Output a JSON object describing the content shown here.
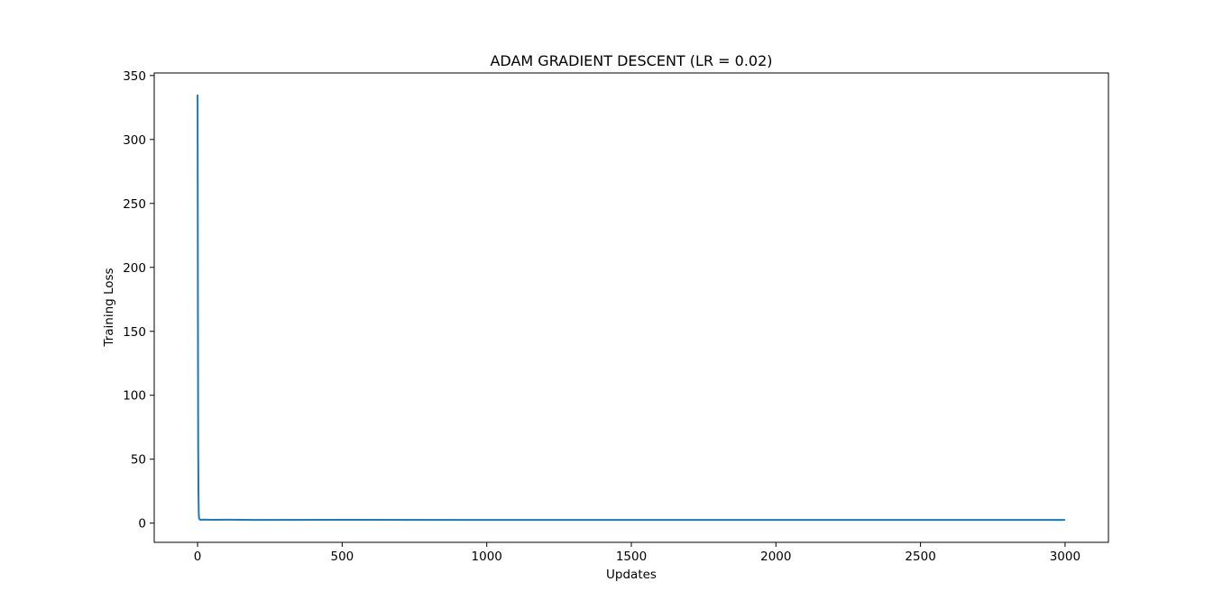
{
  "chart_data": {
    "type": "line",
    "title": "ADAM GRADIENT DESCENT (LR = 0.02)",
    "xlabel": "Updates",
    "ylabel": "Training Loss",
    "xlim": [
      -150,
      3150
    ],
    "ylim": [
      -15,
      352
    ],
    "xticks": [
      0,
      500,
      1000,
      1500,
      2000,
      2500,
      3000
    ],
    "yticks": [
      0,
      50,
      100,
      150,
      200,
      250,
      300,
      350
    ],
    "grid": false,
    "legend": "none",
    "series": [
      {
        "color": "#1f77b4",
        "x": [
          0,
          1,
          2,
          3,
          4,
          5,
          7,
          10,
          20,
          50,
          100,
          200,
          500,
          1000,
          1500,
          2000,
          2500,
          3000
        ],
        "y": [
          335,
          180,
          60,
          25,
          8,
          4,
          3,
          2.6,
          2.8,
          2.6,
          2.7,
          2.5,
          2.6,
          2.5,
          2.5,
          2.5,
          2.5,
          2.5
        ]
      }
    ]
  }
}
